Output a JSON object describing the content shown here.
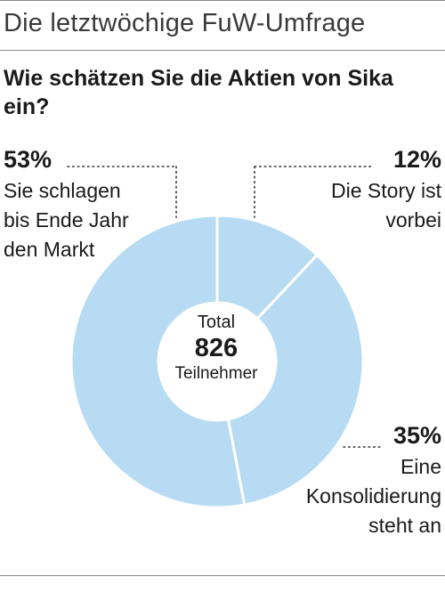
{
  "header": {
    "title": "Die letztwöchige FuW-Umfrage"
  },
  "question": "Wie schätzen Sie die Aktien von Sika ein?",
  "center": {
    "top": "Total",
    "value": "826",
    "bottom": "Teilnehmer"
  },
  "colors": {
    "slice": "#b7dbf3",
    "separator": "#ffffff",
    "leader": "#333333"
  },
  "chart_data": {
    "type": "pie",
    "style": "donut",
    "slices": [
      {
        "value": 12,
        "label_pct": "12%",
        "label_lines": [
          "Die Story ist",
          "vorbei"
        ]
      },
      {
        "value": 35,
        "label_pct": "35%",
        "label_lines": [
          "Eine",
          "Konsolidierung",
          "steht an"
        ]
      },
      {
        "value": 53,
        "label_pct": "53%",
        "label_lines": [
          "Sie schlagen",
          "bis Ende Jahr",
          "den Markt"
        ]
      }
    ]
  }
}
